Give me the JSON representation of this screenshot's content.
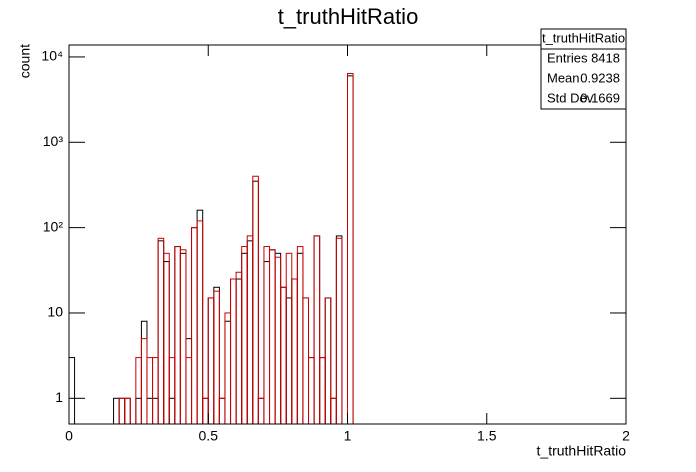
{
  "chart_data": {
    "type": "histogram",
    "title": "t_truthHitRatio",
    "x_label": "t_truthHitRatio",
    "y_label": "count",
    "bins": [
      0,
      0.02,
      0.04,
      0.06,
      0.08,
      0.1,
      0.12,
      0.14,
      0.16,
      0.18,
      0.2,
      0.22,
      0.24,
      0.26,
      0.28,
      0.3,
      0.32,
      0.34,
      0.36,
      0.38,
      0.4,
      0.42,
      0.44,
      0.46,
      0.48,
      0.5,
      0.52,
      0.54,
      0.56,
      0.58,
      0.6,
      0.62,
      0.64,
      0.66,
      0.68,
      0.7,
      0.72,
      0.74,
      0.76,
      0.78,
      0.8,
      0.82,
      0.84,
      0.86,
      0.88,
      0.9,
      0.92,
      0.94,
      0.96,
      0.98,
      1,
      1.02
    ],
    "series": [
      {
        "color": "#000000",
        "values": [
          3,
          0,
          0,
          0,
          0,
          0,
          0,
          0,
          1,
          1,
          1,
          0,
          1,
          8,
          1,
          1,
          70,
          40,
          1,
          60,
          50,
          5,
          100,
          160,
          1,
          15,
          20,
          1,
          8,
          25,
          25,
          50,
          70,
          350,
          1,
          40,
          55,
          50,
          20,
          15,
          25,
          50,
          15,
          3,
          80,
          3,
          15,
          1,
          80,
          0,
          6000
        ]
      },
      {
        "color": "#cc0000",
        "values": [
          0,
          0,
          0,
          0,
          0,
          0,
          0,
          0,
          0,
          1,
          1,
          0,
          3,
          5,
          3,
          3,
          75,
          50,
          3,
          60,
          55,
          3,
          100,
          120,
          1,
          15,
          18,
          1,
          10,
          25,
          30,
          60,
          80,
          400,
          1,
          60,
          55,
          45,
          20,
          50,
          25,
          60,
          15,
          3,
          80,
          3,
          15,
          1,
          75,
          0,
          6400
        ]
      }
    ],
    "log_y": true,
    "xlim": [
      0,
      2
    ],
    "xticks": [
      0,
      0.5,
      1,
      1.5,
      2
    ],
    "ylim": [
      0.5,
      13800
    ],
    "yticks": [
      1,
      10,
      {
        "value": 100,
        "label": "10²"
      },
      {
        "value": 1000,
        "label": "10³"
      },
      {
        "value": 10000,
        "label": "10⁴"
      }
    ],
    "stats": {
      "title": "t_truthHitRatio",
      "rows": [
        [
          "Entries",
          8418
        ],
        [
          "Mean",
          0.9238
        ],
        [
          "Std Dev",
          0.1669
        ]
      ]
    }
  }
}
